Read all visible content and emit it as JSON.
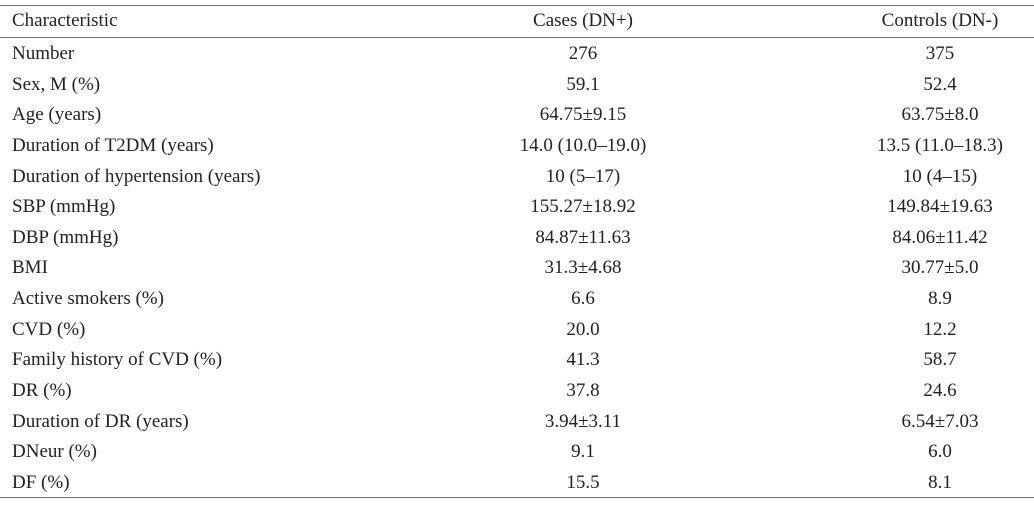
{
  "table": {
    "header": [
      "Characteristic",
      "Cases (DN+)",
      "Controls (DN-)"
    ],
    "rows": [
      [
        "Number",
        "276",
        "375"
      ],
      [
        "Sex, M (%)",
        "59.1",
        "52.4"
      ],
      [
        "Age (years)",
        "64.75±9.15",
        "63.75±8.0"
      ],
      [
        "Duration of T2DM (years)",
        "14.0 (10.0–19.0)",
        "13.5 (11.0–18.3)"
      ],
      [
        "Duration of hypertension (years)",
        "10 (5–17)",
        "10 (4–15)"
      ],
      [
        "SBP (mmHg)",
        "155.27±18.92",
        "149.84±19.63"
      ],
      [
        "DBP (mmHg)",
        "84.87±11.63",
        "84.06±11.42"
      ],
      [
        "BMI",
        "31.3±4.68",
        "30.77±5.0"
      ],
      [
        "Active smokers (%)",
        "6.6",
        "8.9"
      ],
      [
        "CVD (%)",
        "20.0",
        "12.2"
      ],
      [
        "Family history of CVD (%)",
        "41.3",
        "58.7"
      ],
      [
        "DR (%)",
        "37.8",
        "24.6"
      ],
      [
        "Duration of DR (years)",
        "3.94±3.11",
        "6.54±7.03"
      ],
      [
        "DNeur (%)",
        "9.1",
        "6.0"
      ],
      [
        "DF (%)",
        "15.5",
        "8.1"
      ]
    ]
  }
}
